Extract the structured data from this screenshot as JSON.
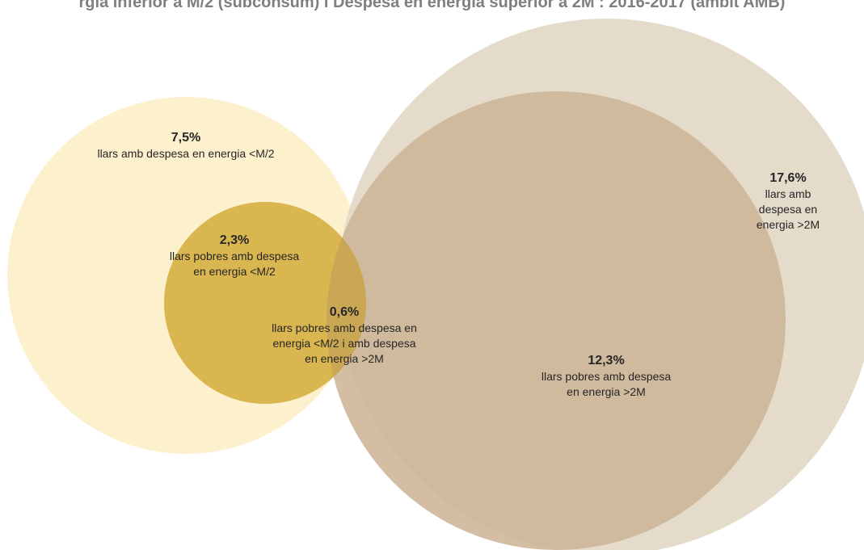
{
  "title": "rgia inferior a M/2  (subconsum) i  Despesa en energia superior a 2M : 2016-2017 (àmbit AMB)",
  "colors": {
    "title": "#7f7f7f",
    "under_all": "#fdf0cc",
    "under_poor": "#d9b650",
    "over_all": "#e4dbca",
    "over_poor": "#cdb597",
    "intersection": "#c9a44a"
  },
  "regions": {
    "under_all": {
      "value": "7,5%",
      "label": "llars amb despesa en energia <M/2"
    },
    "under_poor": {
      "value": "2,3%",
      "label": "llars pobres amb despesa\nen energia <M/2"
    },
    "intersection": {
      "value": "0,6%",
      "label": "llars pobres amb despesa en\nenergia <M/2 i amb despesa\nen energia >2M"
    },
    "over_all": {
      "value": "17,6%",
      "label": "llars amb despesa en\nenergia >2M"
    },
    "over_poor": {
      "value": "12,3%",
      "label": "llars pobres amb despesa\nen energia >2M"
    }
  }
}
